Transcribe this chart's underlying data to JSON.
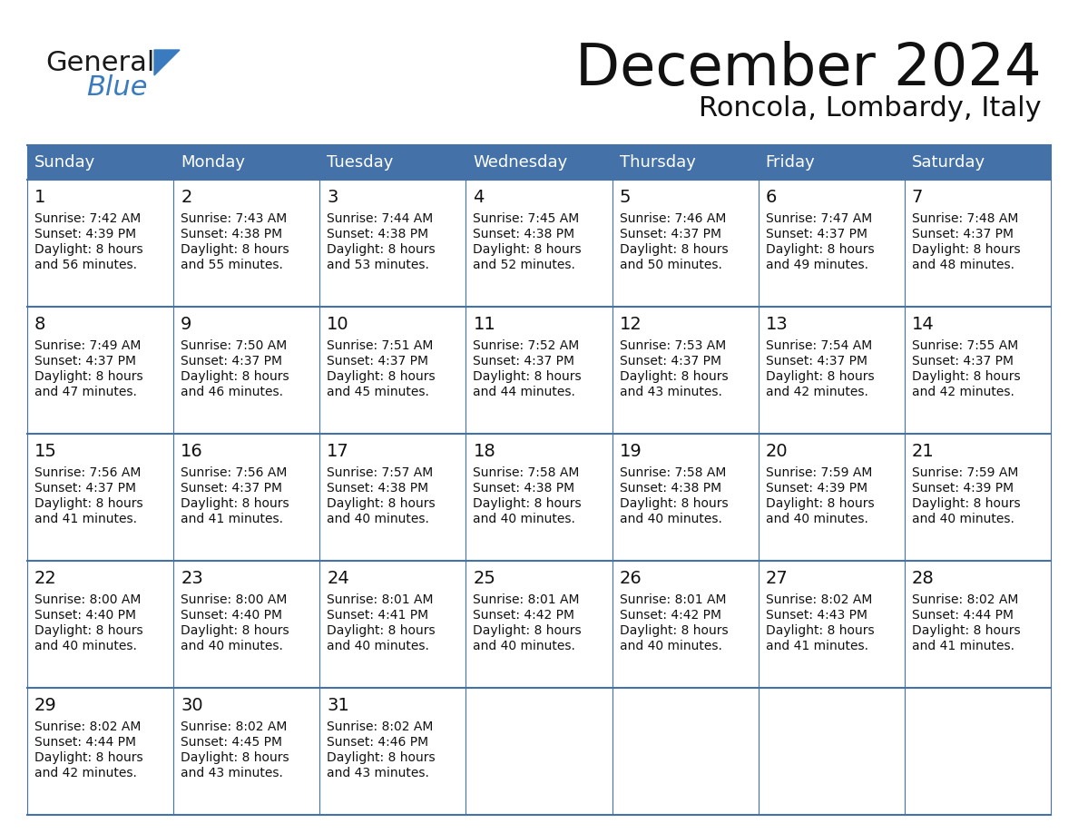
{
  "title": "December 2024",
  "subtitle": "Roncola, Lombardy, Italy",
  "header_color": "#4472a8",
  "header_text_color": "#ffffff",
  "cell_bg_white": "#ffffff",
  "cell_bg_gray": "#e8ecf0",
  "border_color": "#4472a8",
  "row_line_color": "#4472a8",
  "day_names": [
    "Sunday",
    "Monday",
    "Tuesday",
    "Wednesday",
    "Thursday",
    "Friday",
    "Saturday"
  ],
  "days": [
    {
      "day": 1,
      "col": 0,
      "row": 0,
      "sunrise": "7:42 AM",
      "sunset": "4:39 PM",
      "daylight": "8 hours and 56 minutes."
    },
    {
      "day": 2,
      "col": 1,
      "row": 0,
      "sunrise": "7:43 AM",
      "sunset": "4:38 PM",
      "daylight": "8 hours and 55 minutes."
    },
    {
      "day": 3,
      "col": 2,
      "row": 0,
      "sunrise": "7:44 AM",
      "sunset": "4:38 PM",
      "daylight": "8 hours and 53 minutes."
    },
    {
      "day": 4,
      "col": 3,
      "row": 0,
      "sunrise": "7:45 AM",
      "sunset": "4:38 PM",
      "daylight": "8 hours and 52 minutes."
    },
    {
      "day": 5,
      "col": 4,
      "row": 0,
      "sunrise": "7:46 AM",
      "sunset": "4:37 PM",
      "daylight": "8 hours and 50 minutes."
    },
    {
      "day": 6,
      "col": 5,
      "row": 0,
      "sunrise": "7:47 AM",
      "sunset": "4:37 PM",
      "daylight": "8 hours and 49 minutes."
    },
    {
      "day": 7,
      "col": 6,
      "row": 0,
      "sunrise": "7:48 AM",
      "sunset": "4:37 PM",
      "daylight": "8 hours and 48 minutes."
    },
    {
      "day": 8,
      "col": 0,
      "row": 1,
      "sunrise": "7:49 AM",
      "sunset": "4:37 PM",
      "daylight": "8 hours and 47 minutes."
    },
    {
      "day": 9,
      "col": 1,
      "row": 1,
      "sunrise": "7:50 AM",
      "sunset": "4:37 PM",
      "daylight": "8 hours and 46 minutes."
    },
    {
      "day": 10,
      "col": 2,
      "row": 1,
      "sunrise": "7:51 AM",
      "sunset": "4:37 PM",
      "daylight": "8 hours and 45 minutes."
    },
    {
      "day": 11,
      "col": 3,
      "row": 1,
      "sunrise": "7:52 AM",
      "sunset": "4:37 PM",
      "daylight": "8 hours and 44 minutes."
    },
    {
      "day": 12,
      "col": 4,
      "row": 1,
      "sunrise": "7:53 AM",
      "sunset": "4:37 PM",
      "daylight": "8 hours and 43 minutes."
    },
    {
      "day": 13,
      "col": 5,
      "row": 1,
      "sunrise": "7:54 AM",
      "sunset": "4:37 PM",
      "daylight": "8 hours and 42 minutes."
    },
    {
      "day": 14,
      "col": 6,
      "row": 1,
      "sunrise": "7:55 AM",
      "sunset": "4:37 PM",
      "daylight": "8 hours and 42 minutes."
    },
    {
      "day": 15,
      "col": 0,
      "row": 2,
      "sunrise": "7:56 AM",
      "sunset": "4:37 PM",
      "daylight": "8 hours and 41 minutes."
    },
    {
      "day": 16,
      "col": 1,
      "row": 2,
      "sunrise": "7:56 AM",
      "sunset": "4:37 PM",
      "daylight": "8 hours and 41 minutes."
    },
    {
      "day": 17,
      "col": 2,
      "row": 2,
      "sunrise": "7:57 AM",
      "sunset": "4:38 PM",
      "daylight": "8 hours and 40 minutes."
    },
    {
      "day": 18,
      "col": 3,
      "row": 2,
      "sunrise": "7:58 AM",
      "sunset": "4:38 PM",
      "daylight": "8 hours and 40 minutes."
    },
    {
      "day": 19,
      "col": 4,
      "row": 2,
      "sunrise": "7:58 AM",
      "sunset": "4:38 PM",
      "daylight": "8 hours and 40 minutes."
    },
    {
      "day": 20,
      "col": 5,
      "row": 2,
      "sunrise": "7:59 AM",
      "sunset": "4:39 PM",
      "daylight": "8 hours and 40 minutes."
    },
    {
      "day": 21,
      "col": 6,
      "row": 2,
      "sunrise": "7:59 AM",
      "sunset": "4:39 PM",
      "daylight": "8 hours and 40 minutes."
    },
    {
      "day": 22,
      "col": 0,
      "row": 3,
      "sunrise": "8:00 AM",
      "sunset": "4:40 PM",
      "daylight": "8 hours and 40 minutes."
    },
    {
      "day": 23,
      "col": 1,
      "row": 3,
      "sunrise": "8:00 AM",
      "sunset": "4:40 PM",
      "daylight": "8 hours and 40 minutes."
    },
    {
      "day": 24,
      "col": 2,
      "row": 3,
      "sunrise": "8:01 AM",
      "sunset": "4:41 PM",
      "daylight": "8 hours and 40 minutes."
    },
    {
      "day": 25,
      "col": 3,
      "row": 3,
      "sunrise": "8:01 AM",
      "sunset": "4:42 PM",
      "daylight": "8 hours and 40 minutes."
    },
    {
      "day": 26,
      "col": 4,
      "row": 3,
      "sunrise": "8:01 AM",
      "sunset": "4:42 PM",
      "daylight": "8 hours and 40 minutes."
    },
    {
      "day": 27,
      "col": 5,
      "row": 3,
      "sunrise": "8:02 AM",
      "sunset": "4:43 PM",
      "daylight": "8 hours and 41 minutes."
    },
    {
      "day": 28,
      "col": 6,
      "row": 3,
      "sunrise": "8:02 AM",
      "sunset": "4:44 PM",
      "daylight": "8 hours and 41 minutes."
    },
    {
      "day": 29,
      "col": 0,
      "row": 4,
      "sunrise": "8:02 AM",
      "sunset": "4:44 PM",
      "daylight": "8 hours and 42 minutes."
    },
    {
      "day": 30,
      "col": 1,
      "row": 4,
      "sunrise": "8:02 AM",
      "sunset": "4:45 PM",
      "daylight": "8 hours and 43 minutes."
    },
    {
      "day": 31,
      "col": 2,
      "row": 4,
      "sunrise": "8:02 AM",
      "sunset": "4:46 PM",
      "daylight": "8 hours and 43 minutes."
    }
  ],
  "num_rows": 5,
  "logo_color_general": "#1a1a1a",
  "logo_color_blue": "#3a7bbf",
  "logo_triangle_color": "#3a7bbf"
}
